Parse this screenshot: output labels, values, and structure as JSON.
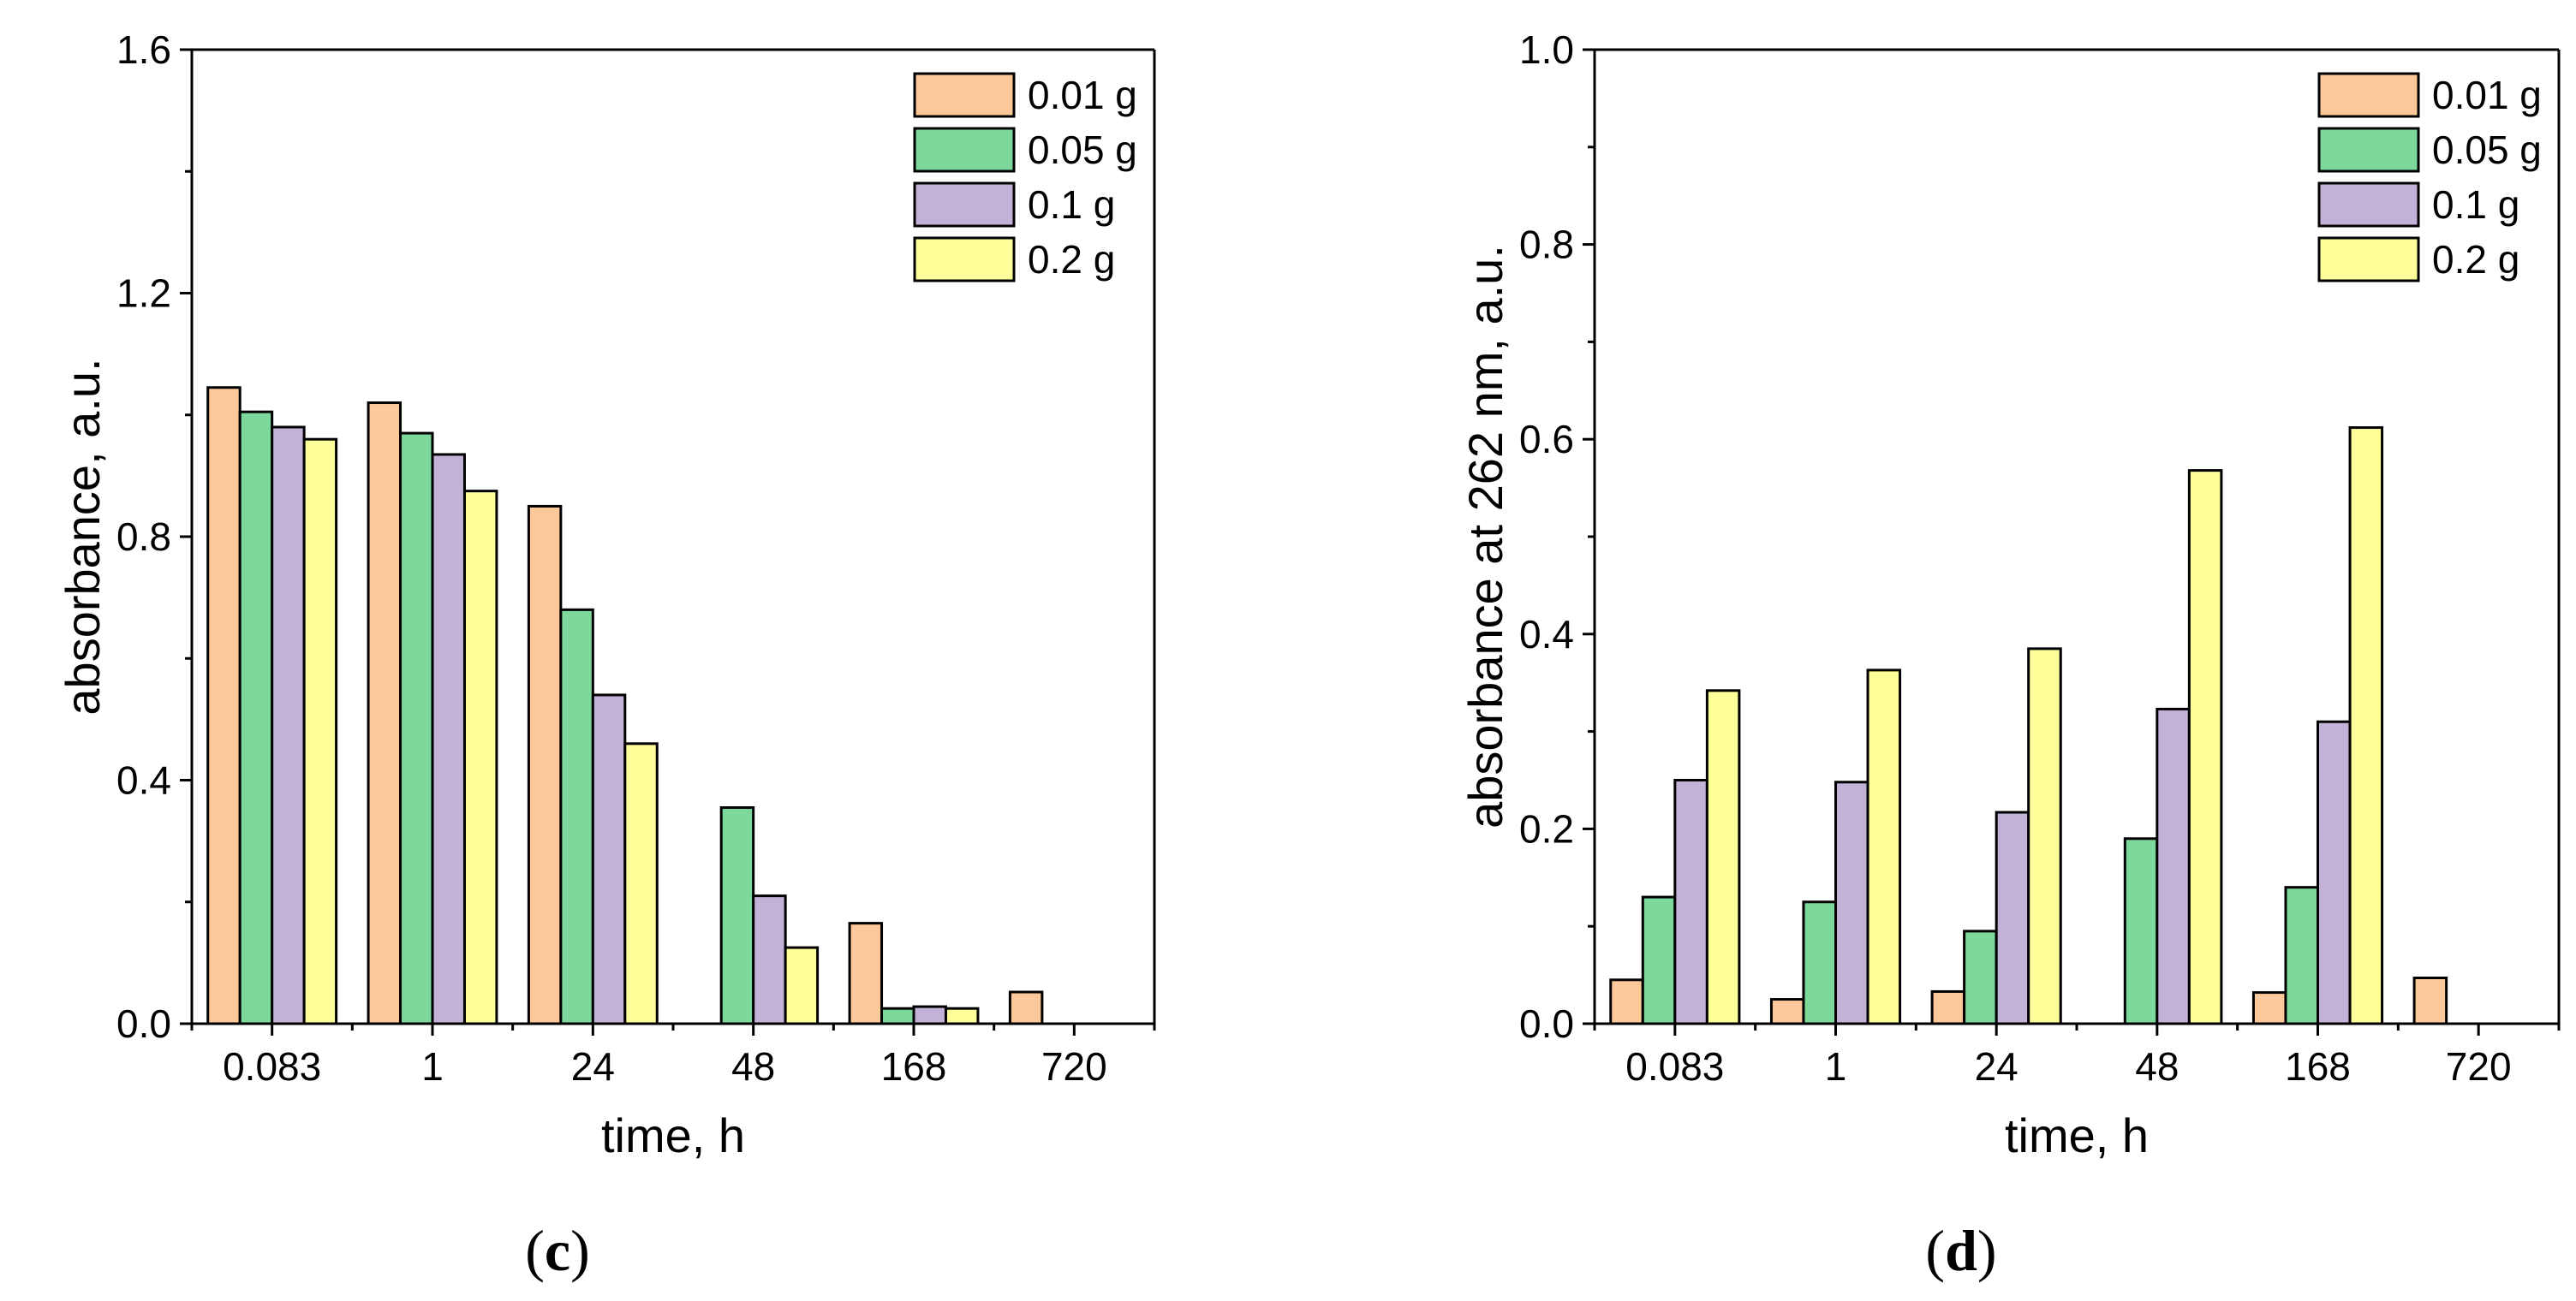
{
  "chart_data": [
    {
      "type": "bar",
      "panel_label": "(c)",
      "panel_letter": "c",
      "title": "",
      "xlabel": "time, h",
      "ylabel": "absorbance, a.u.",
      "categories": [
        "0.083",
        "1",
        "24",
        "48",
        "168",
        "720"
      ],
      "ylim": [
        0,
        1.6
      ],
      "yticks": [
        "0.0",
        "0.4",
        "0.8",
        "1.2",
        "1.6"
      ],
      "legend_position": "top-right",
      "series": [
        {
          "name": "0.01 g",
          "color": "#FDC99A",
          "values": [
            1.045,
            1.02,
            0.85,
            0,
            0.165,
            0.052
          ]
        },
        {
          "name": "0.05 g",
          "color": "#7DD99B",
          "values": [
            1.005,
            0.97,
            0.68,
            0.355,
            0.025,
            0
          ]
        },
        {
          "name": "0.1 g",
          "color": "#C3B2D8",
          "values": [
            0.98,
            0.935,
            0.54,
            0.21,
            0.028,
            0
          ]
        },
        {
          "name": "0.2 g",
          "color": "#FFFF99",
          "values": [
            0.96,
            0.875,
            0.46,
            0.125,
            0.025,
            0
          ]
        }
      ]
    },
    {
      "type": "bar",
      "panel_label": "(d)",
      "panel_letter": "d",
      "title": "",
      "xlabel": "time, h",
      "ylabel": "absorbance at 262 nm, a.u.",
      "categories": [
        "0.083",
        "1",
        "24",
        "48",
        "168",
        "720"
      ],
      "ylim": [
        0,
        1.0
      ],
      "yticks": [
        "0.0",
        "0.2",
        "0.4",
        "0.6",
        "0.8",
        "1.0"
      ],
      "legend_position": "top-right",
      "series": [
        {
          "name": "0.01 g",
          "color": "#FDC99A",
          "values": [
            0.045,
            0.025,
            0.033,
            0,
            0.032,
            0.047
          ]
        },
        {
          "name": "0.05 g",
          "color": "#7DD99B",
          "values": [
            0.13,
            0.125,
            0.095,
            0.19,
            0.14,
            0
          ]
        },
        {
          "name": "0.1 g",
          "color": "#C3B2D8",
          "values": [
            0.25,
            0.248,
            0.217,
            0.323,
            0.31,
            0
          ]
        },
        {
          "name": "0.2 g",
          "color": "#FFFF99",
          "values": [
            0.342,
            0.363,
            0.385,
            0.568,
            0.612,
            0
          ]
        }
      ]
    }
  ]
}
